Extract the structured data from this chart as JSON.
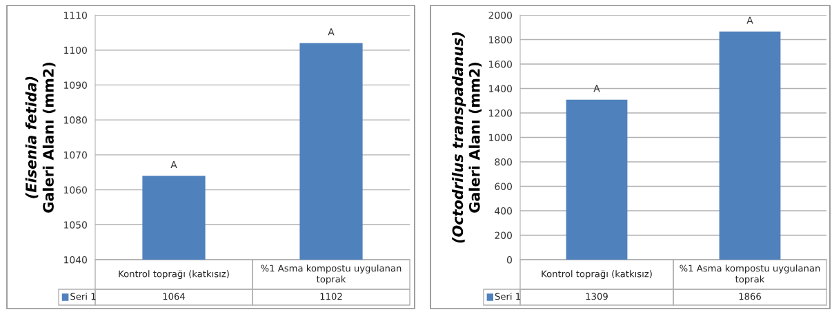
{
  "chart_data": [
    {
      "type": "bar",
      "ylabel": "(Eisenia fetida)\nGaleri Alanı (mm2)",
      "categories": [
        "Kontrol toprağı (katkısız)",
        "%1 Asma kompostu uygulanan toprak"
      ],
      "series": [
        {
          "name": "Seri 1",
          "color": "#4f81bd",
          "values": [
            1064,
            1102
          ]
        }
      ],
      "ylim": [
        1040,
        1110
      ],
      "yticks": [
        1040,
        1050,
        1060,
        1070,
        1080,
        1090,
        1100,
        1110
      ],
      "grid": "y",
      "data_labels": true,
      "annotations": [
        {
          "text": "A",
          "x": "Kontrol toprağı (katkısız)",
          "y": 1064
        },
        {
          "text": "A",
          "x": "%1 Asma kompostu uygulanan toprak",
          "y": 1102
        }
      ]
    },
    {
      "type": "bar",
      "ylabel": "(Octodrilus transpadanus)\nGaleri Alanı (mm2)",
      "categories": [
        "Kontrol toprağı (katkısız)",
        "%1 Asma kompostu uygulanan toprak"
      ],
      "series": [
        {
          "name": "Seri 1",
          "color": "#4f81bd",
          "values": [
            1309,
            1866
          ]
        }
      ],
      "ylim": [
        0,
        2000
      ],
      "yticks": [
        0,
        200,
        400,
        600,
        800,
        1000,
        1200,
        1400,
        1600,
        1800,
        2000
      ],
      "grid": "y",
      "data_labels": true,
      "annotations": [
        {
          "text": "A",
          "x": "Kontrol toprağı (katkısız)",
          "y": 1309
        },
        {
          "text": "A",
          "x": "%1 Asma kompostu uygulanan toprak",
          "y": 1866
        }
      ]
    }
  ]
}
